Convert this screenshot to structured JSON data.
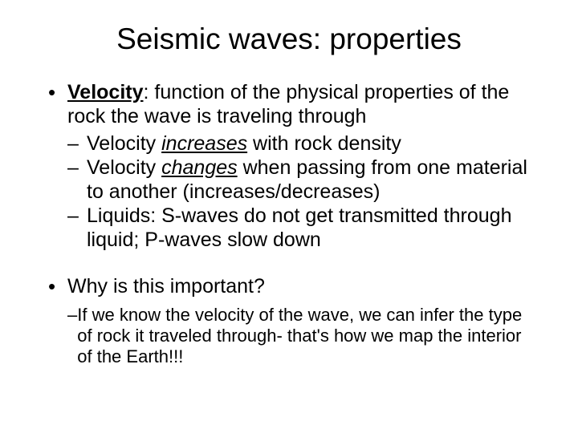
{
  "title": "Seismic waves: properties",
  "bullet1_prefix": "Velocity",
  "bullet1_rest": ": function of the physical properties of the rock the wave is traveling through",
  "sub1_pre": "Velocity ",
  "sub1_em": "increases",
  "sub1_post": " with rock density",
  "sub2_pre": "Velocity ",
  "sub2_em": "changes",
  "sub2_post": " when passing from one material to another (increases/decreases)",
  "sub3": "Liquids: S-waves do not get transmitted through liquid; P-waves slow down",
  "bullet2": "Why is this important?",
  "answer": "If we know the velocity of the wave, we can infer the type of rock it traveled through- that's how we map the interior of the Earth!!!",
  "dot": "•",
  "dash": "–"
}
